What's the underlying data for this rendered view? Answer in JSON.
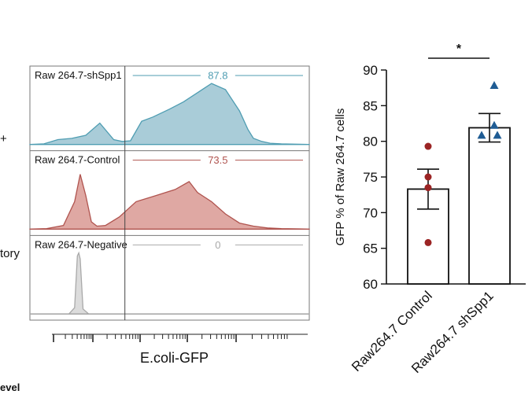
{
  "side_labels": [
    "+",
    "tory",
    "evel"
  ],
  "colors": {
    "shSpp1": "#4f9db2",
    "shSpp1_fill": "#a9ccd8",
    "control": "#b0544f",
    "control_fill": "#dfa8a3",
    "negative": "#a9a9a9",
    "negative_fill": "#dcdcdc",
    "bar_outline": "#111111",
    "control_dot": "#9b2424",
    "shSpp1_dot": "#1f5c94"
  },
  "chart_data": [
    {
      "type": "area",
      "xlabel": "E.coli-GFP",
      "grid": false,
      "gate_label_value_unit": "percent",
      "panels": [
        {
          "name": "Raw 264.7-shSpp1",
          "gate_value": "87.8",
          "color_key": "shSpp1",
          "x": [
            0,
            0.05,
            0.1,
            0.15,
            0.2,
            0.25,
            0.3,
            0.33,
            0.36,
            0.4,
            0.44,
            0.5,
            0.55,
            0.6,
            0.65,
            0.7,
            0.75,
            0.78,
            0.8,
            0.83,
            0.86,
            0.9,
            0.95,
            1
          ],
          "y": [
            0,
            0.01,
            0.08,
            0.1,
            0.15,
            0.35,
            0.08,
            0.05,
            0.06,
            0.38,
            0.45,
            0.58,
            0.7,
            0.85,
            1.0,
            0.9,
            0.55,
            0.25,
            0.1,
            0.05,
            0.02,
            0.01,
            0.005,
            0
          ]
        },
        {
          "name": "Raw 264.7-Control",
          "gate_value": "73.5",
          "color_key": "control",
          "x": [
            0,
            0.06,
            0.12,
            0.16,
            0.18,
            0.2,
            0.22,
            0.24,
            0.27,
            0.32,
            0.38,
            0.45,
            0.52,
            0.57,
            0.6,
            0.65,
            0.7,
            0.75,
            0.8,
            0.85,
            0.9,
            1
          ],
          "y": [
            0,
            0.01,
            0.06,
            0.45,
            0.9,
            0.55,
            0.12,
            0.05,
            0.06,
            0.2,
            0.45,
            0.55,
            0.65,
            0.78,
            0.6,
            0.45,
            0.25,
            0.1,
            0.05,
            0.02,
            0.01,
            0
          ]
        },
        {
          "name": "Raw 264.7-Negative",
          "gate_value": "0",
          "color_key": "negative",
          "x": [
            0,
            0.1,
            0.14,
            0.16,
            0.17,
            0.175,
            0.18,
            0.19,
            0.21,
            0.3,
            1
          ],
          "y": [
            0,
            0,
            0,
            0.1,
            0.95,
            1.0,
            0.9,
            0.08,
            0,
            0,
            0
          ]
        }
      ],
      "gate_start_fraction": 0.34
    },
    {
      "type": "bar",
      "categories": [
        "Raw264.7 Control",
        "Raw264.7 shSpp1"
      ],
      "values": [
        73.3,
        81.9
      ],
      "errors": [
        2.8,
        2.0
      ],
      "points": [
        [
          79.3,
          75.0,
          73.5,
          65.8
        ],
        [
          87.8,
          82.2,
          80.8,
          80.8
        ]
      ],
      "point_markers": [
        "circle",
        "triangle"
      ],
      "ylabel": "GFP % of Raw 264.7 cells",
      "ylim": [
        60,
        90
      ],
      "yticks": [
        60,
        65,
        70,
        75,
        80,
        85,
        90
      ],
      "significance": "*",
      "grid": false
    }
  ]
}
